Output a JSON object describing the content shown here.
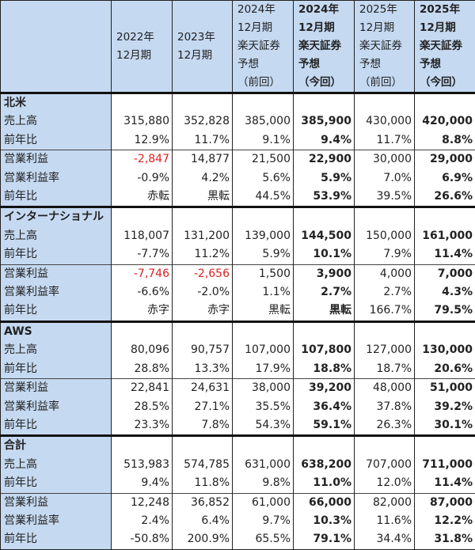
{
  "colors": {
    "header_bg": "#c5d9f1",
    "label_bg": "#c5d9f1",
    "negative": "#e02020"
  },
  "columns": [
    {
      "lines": [
        ""
      ],
      "bold": false
    },
    {
      "lines": [
        "2022年",
        "12月期"
      ],
      "bold": false
    },
    {
      "lines": [
        "2023年",
        "12月期"
      ],
      "bold": false
    },
    {
      "lines": [
        "2024年",
        "12月期",
        "楽天証券",
        "予想",
        "（前回）"
      ],
      "bold": false
    },
    {
      "lines": [
        "2024年",
        "12月期",
        "楽天証券",
        "予想",
        "（今回）"
      ],
      "bold": true
    },
    {
      "lines": [
        "2025年",
        "12月期",
        "楽天証券",
        "予想",
        "（前回）"
      ],
      "bold": false
    },
    {
      "lines": [
        "2025年",
        "12月期",
        "楽天証券",
        "予想",
        "（今回）"
      ],
      "bold": true
    }
  ],
  "sections": [
    {
      "name": "北米",
      "rows": [
        {
          "label": "売上高",
          "values": [
            "315,880",
            "352,828",
            "385,000",
            "385,900",
            "430,000",
            "420,000"
          ]
        },
        {
          "label": "前年比",
          "values": [
            "12.9%",
            "11.7%",
            "9.1%",
            "9.4%",
            "11.7%",
            "8.8%"
          ]
        },
        {
          "label": "営業利益",
          "values": [
            "-2,847",
            "14,877",
            "21,500",
            "22,900",
            "30,000",
            "29,000"
          ],
          "red": [
            0
          ],
          "group_start": true
        },
        {
          "label": "営業利益率",
          "values": [
            "-0.9%",
            "4.2%",
            "5.6%",
            "5.9%",
            "7.0%",
            "6.9%"
          ]
        },
        {
          "label": "前年比",
          "values": [
            "赤転",
            "黒転",
            "44.5%",
            "53.9%",
            "39.5%",
            "26.6%"
          ]
        }
      ]
    },
    {
      "name": "インターナショナル",
      "rows": [
        {
          "label": "売上高",
          "values": [
            "118,007",
            "131,200",
            "139,000",
            "144,500",
            "150,000",
            "161,000"
          ]
        },
        {
          "label": "前年比",
          "values": [
            "-7.7%",
            "11.2%",
            "5.9%",
            "10.1%",
            "7.9%",
            "11.4%"
          ]
        },
        {
          "label": "営業利益",
          "values": [
            "-7,746",
            "-2,656",
            "1,500",
            "3,900",
            "4,000",
            "7,000"
          ],
          "red": [
            0,
            1
          ],
          "group_start": true
        },
        {
          "label": "営業利益率",
          "values": [
            "-6.6%",
            "-2.0%",
            "1.1%",
            "2.7%",
            "2.7%",
            "4.3%"
          ]
        },
        {
          "label": "前年比",
          "values": [
            "赤字",
            "赤字",
            "黒転",
            "黒転",
            "166.7%",
            "79.5%"
          ]
        }
      ]
    },
    {
      "name": "AWS",
      "rows": [
        {
          "label": "売上高",
          "values": [
            "80,096",
            "90,757",
            "107,000",
            "107,800",
            "127,000",
            "130,000"
          ]
        },
        {
          "label": "前年比",
          "values": [
            "28.8%",
            "13.3%",
            "17.9%",
            "18.8%",
            "18.7%",
            "20.6%"
          ]
        },
        {
          "label": "営業利益",
          "values": [
            "22,841",
            "24,631",
            "38,000",
            "39,200",
            "48,000",
            "51,000"
          ],
          "group_start": true
        },
        {
          "label": "営業利益率",
          "values": [
            "28.5%",
            "27.1%",
            "35.5%",
            "36.4%",
            "37.8%",
            "39.2%"
          ]
        },
        {
          "label": "前年比",
          "values": [
            "23.3%",
            "7.8%",
            "54.3%",
            "59.1%",
            "26.3%",
            "30.1%"
          ]
        }
      ]
    },
    {
      "name": "合計",
      "rows": [
        {
          "label": "売上高",
          "values": [
            "513,983",
            "574,785",
            "631,000",
            "638,200",
            "707,000",
            "711,000"
          ]
        },
        {
          "label": "前年比",
          "values": [
            "9.4%",
            "11.8%",
            "9.8%",
            "11.0%",
            "12.0%",
            "11.4%"
          ]
        },
        {
          "label": "営業利益",
          "values": [
            "12,248",
            "36,852",
            "61,000",
            "66,000",
            "82,000",
            "87,000"
          ],
          "group_start": true
        },
        {
          "label": "営業利益率",
          "values": [
            "2.4%",
            "6.4%",
            "9.7%",
            "10.3%",
            "11.6%",
            "12.2%"
          ]
        },
        {
          "label": "前年比",
          "values": [
            "-50.8%",
            "200.9%",
            "65.5%",
            "79.1%",
            "34.4%",
            "31.8%"
          ]
        }
      ]
    }
  ]
}
